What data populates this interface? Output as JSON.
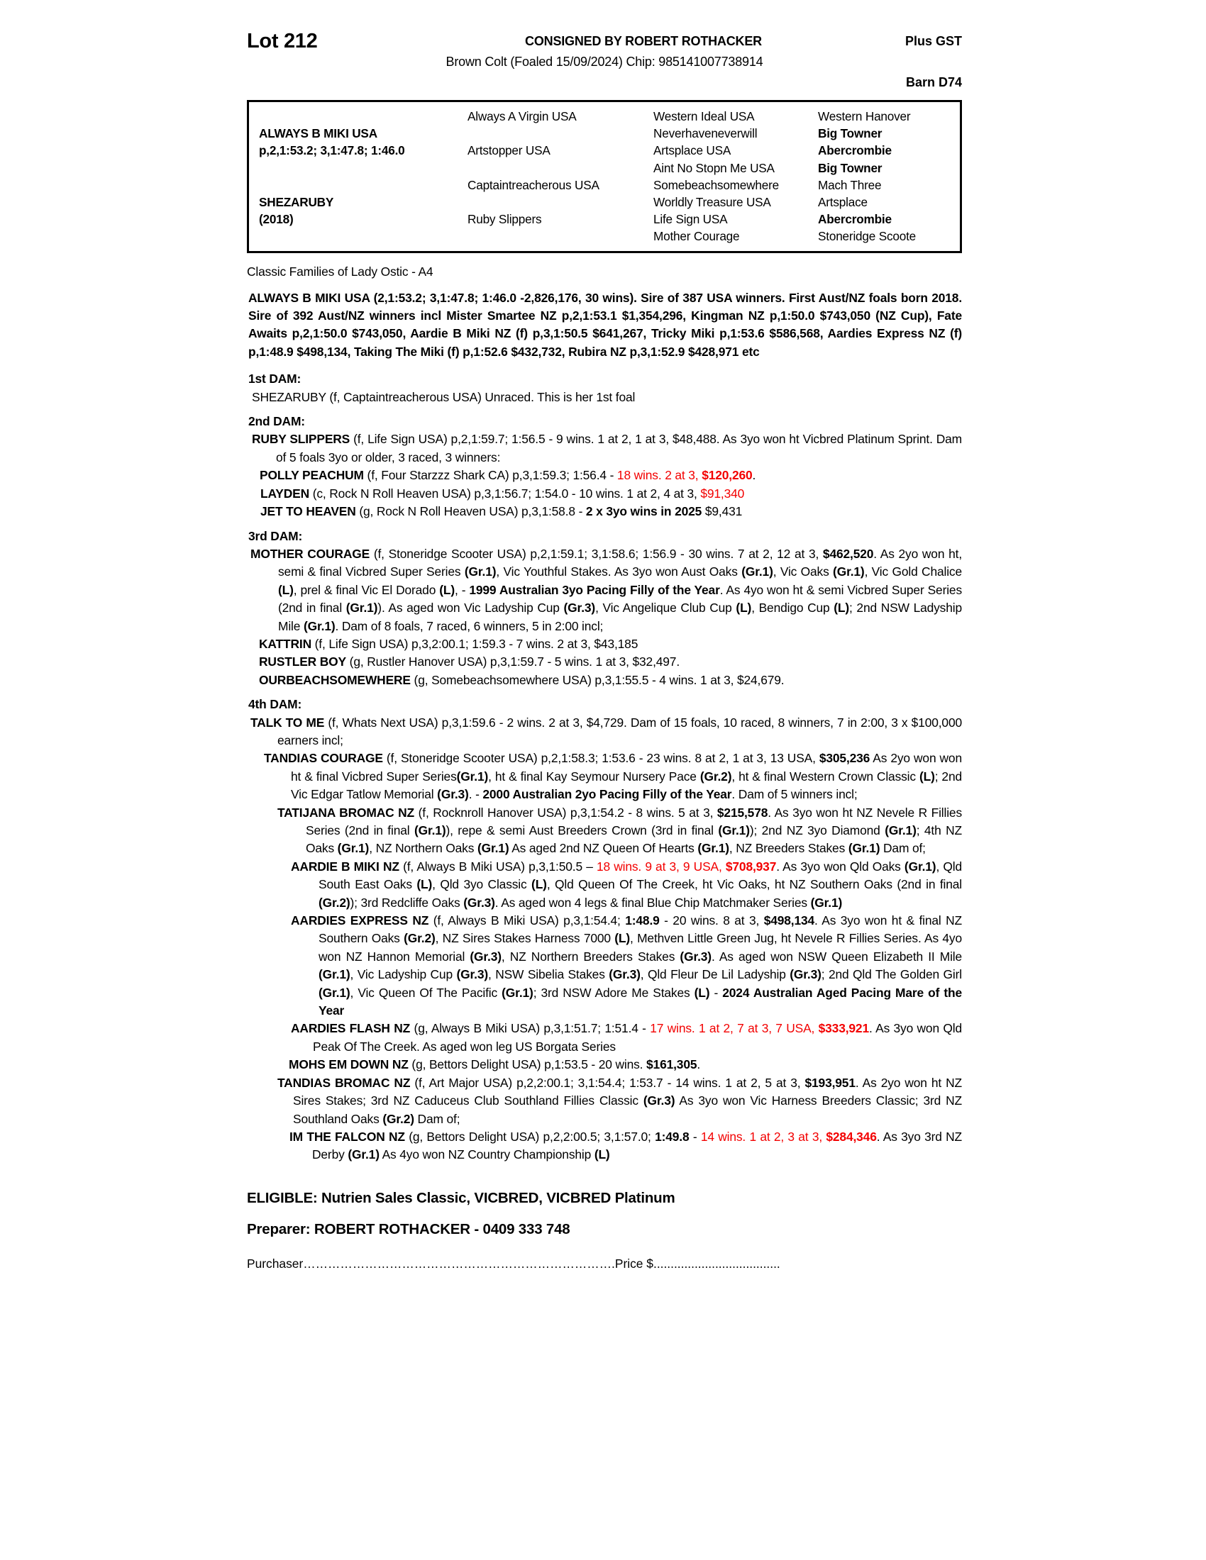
{
  "header": {
    "lot": "Lot 212",
    "consigned": "CONSIGNED BY ROBERT ROTHACKER",
    "plus_gst": "Plus GST",
    "subtitle": "Brown Colt (Foaled 15/09/2024) Chip: 985141007738914",
    "barn": "Barn D74"
  },
  "pedigree": {
    "rows": [
      [
        {
          "t": "",
          "b": false
        },
        {
          "t": "Always A Virgin USA",
          "b": false
        },
        {
          "t": "Western Ideal USA",
          "b": false
        },
        {
          "t": "Western Hanover",
          "b": false
        }
      ],
      [
        {
          "t": "ALWAYS B MIKI USA",
          "b": true
        },
        {
          "t": "",
          "b": false
        },
        {
          "t": "Neverhaveneverwill",
          "b": false
        },
        {
          "t": "Big Towner",
          "b": true
        }
      ],
      [
        {
          "t": "p,2,1:53.2; 3,1:47.8; 1:46.0",
          "b": true
        },
        {
          "t": "Artstopper USA",
          "b": false
        },
        {
          "t": "Artsplace USA",
          "b": false
        },
        {
          "t": "Abercrombie",
          "b": true
        }
      ],
      [
        {
          "t": "",
          "b": false
        },
        {
          "t": "",
          "b": false
        },
        {
          "t": "Aint No Stopn Me USA",
          "b": false
        },
        {
          "t": "Big Towner",
          "b": true
        }
      ],
      [
        {
          "t": "",
          "b": false
        },
        {
          "t": "Captaintreacherous USA",
          "b": false
        },
        {
          "t": "Somebeachsomewhere",
          "b": false
        },
        {
          "t": "Mach Three",
          "b": false
        }
      ],
      [
        {
          "t": "SHEZARUBY",
          "b": true
        },
        {
          "t": "",
          "b": false
        },
        {
          "t": "Worldly Treasure USA",
          "b": false
        },
        {
          "t": "Artsplace",
          "b": false
        }
      ],
      [
        {
          "t": "(2018)",
          "b": true
        },
        {
          "t": "Ruby Slippers",
          "b": false
        },
        {
          "t": "Life Sign USA",
          "b": false
        },
        {
          "t": "Abercrombie",
          "b": true
        }
      ],
      [
        {
          "t": "",
          "b": false
        },
        {
          "t": "",
          "b": false
        },
        {
          "t": "Mother Courage",
          "b": false
        },
        {
          "t": "Stoneridge Scoote",
          "b": false
        }
      ]
    ]
  },
  "classic_families": "Classic Families of Lady Ostic - A4",
  "sections": [
    {
      "k": "e",
      "name": "sire-paragraph",
      "ind": 0,
      "hang": 0,
      "mt": 0,
      "runs": [
        [
          "ALWAYS B MIKI USA (2,1:53.2; 3,1:47.8; 1:46.0 -2,826,176, 30 wins). Sire of 387 USA winners. First Aust/NZ foals born 2018. Sire of 392 Aust/NZ winners incl Mister Smartee NZ p,2,1:53.1 $1,354,296, Kingman NZ p,1:50.0 $743,050 (NZ Cup), Fate Awaits p,2,1:50.0 $743,050, Aardie B Miki NZ (f) p,3,1:50.5 $641,267, Tricky Miki p,1:53.6 $586,568, Aardies Express NZ (f) p,1:48.9 $498,134, Taking The Miki (f) p,1:52.6 $432,732, Rubira NZ p,3,1:52.9 $428,971 etc",
          "b"
        ]
      ]
    },
    {
      "k": "h",
      "mt": 13,
      "t": "1st DAM:"
    },
    {
      "k": "e",
      "name": "entry-shezaruby",
      "ind": 5,
      "hang": 30,
      "mt": 0,
      "runs": [
        [
          "SHEZARUBY (f, Captaintreacherous USA) Unraced. This is her 1st foal",
          "n"
        ]
      ]
    },
    {
      "k": "h",
      "mt": 9,
      "t": "2nd DAM:"
    },
    {
      "k": "e",
      "name": "entry-ruby-slippers",
      "ind": 5,
      "hang": 34,
      "mt": 0,
      "runs": [
        [
          "RUBY SLIPPERS",
          "b"
        ],
        [
          " (f, Life Sign USA) p,2,1:59.7; 1:56.5 - 9 wins. 1 at 2, 1 at 3, $48,488. As 3yo won ht Vicbred Platinum Sprint. Dam of 5 foals 3yo or older, 3 raced, 3 winners:",
          "n"
        ]
      ]
    },
    {
      "k": "e",
      "name": "entry-polly-peachum",
      "ind": 16,
      "hang": 30,
      "mt": 0,
      "runs": [
        [
          "POLLY PEACHUM",
          "b"
        ],
        [
          " (f, Four Starzzz Shark CA) p,3,1:59.3; 1:56.4 - ",
          "n"
        ],
        [
          "18 wins. 2 at 3, ",
          "r"
        ],
        [
          "$120,260",
          "rb"
        ],
        [
          ".",
          "n"
        ]
      ]
    },
    {
      "k": "e",
      "name": "entry-layden",
      "ind": 17,
      "hang": 30,
      "mt": 0,
      "runs": [
        [
          "LAYDEN",
          "b"
        ],
        [
          " (c, Rock N Roll Heaven USA) p,3,1:56.7; 1:54.0 - 10 wins. 1 at 2, 4 at 3, ",
          "n"
        ],
        [
          "$91,340",
          "r"
        ]
      ]
    },
    {
      "k": "e",
      "name": "entry-jet-to-heaven",
      "ind": 17,
      "hang": 30,
      "mt": 0,
      "runs": [
        [
          "JET TO HEAVEN",
          "b"
        ],
        [
          " (g, Rock N Roll Heaven USA) p,3,1:58.8 -  ",
          "n"
        ],
        [
          "2 x 3yo wins in 2025",
          "b"
        ],
        [
          " $9,431",
          "n"
        ]
      ]
    },
    {
      "k": "h",
      "mt": 9,
      "t": "3rd DAM:"
    },
    {
      "k": "e",
      "name": "entry-mother-courage",
      "ind": 3,
      "hang": 39,
      "mt": 0,
      "runs": [
        [
          "MOTHER COURAGE",
          "b"
        ],
        [
          " (f, Stoneridge Scooter USA) p,2,1:59.1; 3,1:58.6; 1:56.9 - 30 wins. 7 at 2, 12 at 3, ",
          "n"
        ],
        [
          "$462,520",
          "b"
        ],
        [
          ". As 2yo won ht, semi & final Vicbred Super Series ",
          "n"
        ],
        [
          "(Gr.1)",
          "b"
        ],
        [
          ", Vic Youthful Stakes. As 3yo won Aust Oaks ",
          "n"
        ],
        [
          "(Gr.1)",
          "b"
        ],
        [
          ", Vic Oaks ",
          "n"
        ],
        [
          "(Gr.1)",
          "b"
        ],
        [
          ", Vic Gold Chalice ",
          "n"
        ],
        [
          "(L)",
          "b"
        ],
        [
          ", prel & final Vic El Dorado ",
          "n"
        ],
        [
          "(L)",
          "b"
        ],
        [
          ", - ",
          "n"
        ],
        [
          "1999 Australian 3yo Pacing Filly of the Year",
          "b"
        ],
        [
          ". As 4yo won ht & semi Vicbred Super Series (2nd in final ",
          "n"
        ],
        [
          "(Gr.1)",
          "b"
        ],
        [
          "). As aged won Vic Ladyship Cup ",
          "n"
        ],
        [
          "(Gr.3)",
          "b"
        ],
        [
          ", Vic Angelique Club Cup ",
          "n"
        ],
        [
          "(L)",
          "b"
        ],
        [
          ", Bendigo Cup ",
          "n"
        ],
        [
          "(L)",
          "b"
        ],
        [
          "; 2nd NSW Ladyship Mile ",
          "n"
        ],
        [
          "(Gr.1)",
          "b"
        ],
        [
          ". Dam of 8 foals, 7 raced, 6 winners, 5 in 2:00 incl;",
          "n"
        ]
      ]
    },
    {
      "k": "e",
      "name": "entry-kattrin",
      "ind": 15,
      "hang": 30,
      "mt": 0,
      "runs": [
        [
          "KATTRIN",
          "b"
        ],
        [
          " (f, Life Sign USA) p,3,2:00.1; 1:59.3 - 7 wins. 2 at 3, $43,185",
          "n"
        ]
      ]
    },
    {
      "k": "e",
      "name": "entry-rustler-boy",
      "ind": 15,
      "hang": 30,
      "mt": 0,
      "runs": [
        [
          "RUSTLER BOY",
          "b"
        ],
        [
          " (g, Rustler Hanover USA) p,3,1:59.7 - 5 wins. 1 at 3, $32,497.",
          "n"
        ]
      ]
    },
    {
      "k": "e",
      "name": "entry-ourbeachsomewhere",
      "ind": 15,
      "hang": 30,
      "mt": 0,
      "runs": [
        [
          "OURBEACHSOMEWHERE",
          "b"
        ],
        [
          " (g, Somebeachsomewhere USA) p,3,1:55.5 - 4 wins. 1 at 3, $24,679.",
          "n"
        ]
      ]
    },
    {
      "k": "h",
      "mt": 9,
      "t": "4th DAM:"
    },
    {
      "k": "e",
      "name": "entry-talk-to-me",
      "ind": 3,
      "hang": 38,
      "mt": 0,
      "runs": [
        [
          "TALK TO ME",
          "b"
        ],
        [
          " (f, Whats Next USA) p,3,1:59.6 - 2 wins. 2 at 3, $4,729. Dam of 15 foals, 10 raced, 8 winners, 7 in 2:00, 3 x $100,000 earners incl;",
          "n"
        ]
      ]
    },
    {
      "k": "e",
      "name": "entry-tandias-courage",
      "ind": 22,
      "hang": 38,
      "mt": 0,
      "runs": [
        [
          "TANDIAS COURAGE",
          "b"
        ],
        [
          " (f, Stoneridge Scooter USA) p,2,1:58.3; 1:53.6 - 23 wins. 8 at 2, 1 at 3, 13 USA, ",
          "n"
        ],
        [
          "$305,236",
          "b"
        ],
        [
          " As 2yo won won ht & final Vicbred Super Series",
          "n"
        ],
        [
          "(Gr.1)",
          "b"
        ],
        [
          ", ht & final Kay Seymour Nursery Pace ",
          "n"
        ],
        [
          "(Gr.2)",
          "b"
        ],
        [
          ", ht & final Western Crown Classic ",
          "n"
        ],
        [
          "(L)",
          "b"
        ],
        [
          "; 2nd Vic Edgar Tatlow Memorial ",
          "n"
        ],
        [
          "(Gr.3)",
          "b"
        ],
        [
          ". - ",
          "n"
        ],
        [
          "2000 Australian 2yo Pacing Filly of the Year",
          "b"
        ],
        [
          ". Dam of 5 winners incl;",
          "n"
        ]
      ]
    },
    {
      "k": "e",
      "name": "entry-tatijana-bromac",
      "ind": 41,
      "hang": 40,
      "mt": 0,
      "runs": [
        [
          "TATIJANA BROMAC NZ",
          "b"
        ],
        [
          " (f, Rocknroll Hanover USA) p,3,1:54.2 - 8 wins. 5 at 3, ",
          "n"
        ],
        [
          "$215,578",
          "b"
        ],
        [
          ". As 3yo won ht NZ Nevele R Fillies Series (2nd in final ",
          "n"
        ],
        [
          "(Gr.1)",
          "b"
        ],
        [
          "), repe & semi Aust Breeders Crown (3rd in final ",
          "n"
        ],
        [
          "(Gr.1)",
          "b"
        ],
        [
          "); 2nd NZ 3yo Diamond ",
          "n"
        ],
        [
          "(Gr.1)",
          "b"
        ],
        [
          "; 4th NZ Oaks ",
          "n"
        ],
        [
          "(Gr.1)",
          "b"
        ],
        [
          ", NZ Northern Oaks ",
          "n"
        ],
        [
          "(Gr.1)",
          "b"
        ],
        [
          " As aged 2nd NZ Queen Of Hearts ",
          "n"
        ],
        [
          "(Gr.1)",
          "b"
        ],
        [
          ", NZ Breeders Stakes ",
          "n"
        ],
        [
          "(Gr.1)",
          "b"
        ],
        [
          " Dam of;",
          "n"
        ]
      ]
    },
    {
      "k": "e",
      "name": "entry-aardie-b-miki",
      "ind": 60,
      "hang": 39,
      "mt": 0,
      "runs": [
        [
          "AARDIE B MIKI NZ",
          "b"
        ],
        [
          " (f, Always B Miki USA) p,3,1:50.5 – ",
          "n"
        ],
        [
          "18 wins. 9 at 3, 9 USA, ",
          "r"
        ],
        [
          "$708,937",
          "rb"
        ],
        [
          ". As 3yo won Qld Oaks ",
          "n"
        ],
        [
          "(Gr.1)",
          "b"
        ],
        [
          ", Qld South East Oaks ",
          "n"
        ],
        [
          "(L)",
          "b"
        ],
        [
          ", Qld 3yo Classic ",
          "n"
        ],
        [
          "(L)",
          "b"
        ],
        [
          ", Qld Queen Of The Creek, ht Vic Oaks, ht NZ Southern Oaks (2nd in final ",
          "n"
        ],
        [
          "(Gr.2)",
          "b"
        ],
        [
          "); 3rd Redcliffe Oaks ",
          "n"
        ],
        [
          "(Gr.3)",
          "b"
        ],
        [
          ". As aged won 4 legs & final Blue Chip Matchmaker Series ",
          "n"
        ],
        [
          "(Gr.1)",
          "b"
        ]
      ]
    },
    {
      "k": "e",
      "name": "entry-aardies-express",
      "ind": 60,
      "hang": 39,
      "mt": 0,
      "runs": [
        [
          "AARDIES EXPRESS NZ",
          "b"
        ],
        [
          " (f, Always B Miki USA) p,3,1:54.4; ",
          "n"
        ],
        [
          "1:48.9",
          "b"
        ],
        [
          " - 20 wins. 8 at 3, ",
          "n"
        ],
        [
          "$498,134",
          "b"
        ],
        [
          ". As 3yo won ht & final NZ Southern Oaks ",
          "n"
        ],
        [
          "(Gr.2)",
          "b"
        ],
        [
          ", NZ Sires Stakes Harness 7000 ",
          "n"
        ],
        [
          "(L)",
          "b"
        ],
        [
          ", Methven Little Green Jug, ht Nevele R Fillies Series. As 4yo won NZ Hannon Memorial ",
          "n"
        ],
        [
          "(Gr.3)",
          "b"
        ],
        [
          ", NZ Northern Breeders Stakes ",
          "n"
        ],
        [
          "(Gr.3)",
          "b"
        ],
        [
          ". As aged won NSW Queen Elizabeth II Mile ",
          "n"
        ],
        [
          "(Gr.1)",
          "b"
        ],
        [
          ", Vic Ladyship Cup ",
          "n"
        ],
        [
          "(Gr.3)",
          "b"
        ],
        [
          ", NSW Sibelia Stakes ",
          "n"
        ],
        [
          "(Gr.3)",
          "b"
        ],
        [
          ", Qld Fleur De Lil Ladyship ",
          "n"
        ],
        [
          "(Gr.3)",
          "b"
        ],
        [
          "; 2nd Qld The Golden Girl ",
          "n"
        ],
        [
          "(Gr.1)",
          "b"
        ],
        [
          ", Vic Queen Of The Pacific ",
          "n"
        ],
        [
          "(Gr.1)",
          "b"
        ],
        [
          "; 3rd NSW Adore Me Stakes ",
          "n"
        ],
        [
          "(L)",
          "b"
        ],
        [
          " - ",
          "n"
        ],
        [
          "2024 Australian Aged Pacing Mare of the Year",
          "b"
        ]
      ]
    },
    {
      "k": "e",
      "name": "entry-aardies-flash",
      "ind": 60,
      "hang": 31,
      "mt": 0,
      "runs": [
        [
          "AARDIES FLASH NZ",
          "b"
        ],
        [
          " (g, Always B Miki USA) p,3,1:51.7; 1:51.4 - ",
          "n"
        ],
        [
          "17 wins. 1 at 2, 7 at 3, 7 USA, ",
          "r"
        ],
        [
          "$333,921",
          "rb"
        ],
        [
          ". As 3yo won Qld Peak Of The Creek. As aged won leg US Borgata Series",
          "n"
        ]
      ]
    },
    {
      "k": "e",
      "name": "entry-mohs-em-down",
      "ind": 57,
      "hang": 30,
      "mt": 0,
      "runs": [
        [
          "MOHS EM DOWN NZ",
          "b"
        ],
        [
          " (g, Bettors Delight USA) p,1:53.5 - 20 wins. ",
          "n"
        ],
        [
          "$161,305",
          "b"
        ],
        [
          ".",
          "n"
        ]
      ]
    },
    {
      "k": "e",
      "name": "entry-tandias-bromac",
      "ind": 41,
      "hang": 22,
      "mt": 0,
      "runs": [
        [
          "TANDIAS BROMAC NZ",
          "b"
        ],
        [
          " (f, Art Major USA) p,2,2:00.1; 3,1:54.4; 1:53.7 - 14 wins. 1 at 2, 5 at 3, ",
          "n"
        ],
        [
          "$193,951",
          "b"
        ],
        [
          ". As 2yo won ht NZ Sires Stakes; 3rd NZ Caduceus Club Southland Fillies Classic ",
          "n"
        ],
        [
          "(Gr.3)",
          "b"
        ],
        [
          " As 3yo won Vic Harness Breeders Classic; 3rd NZ Southland Oaks ",
          "n"
        ],
        [
          "(Gr.2)",
          "b"
        ],
        [
          " Dam of;",
          "n"
        ]
      ]
    },
    {
      "k": "e",
      "name": "entry-im-the-falcon",
      "ind": 58,
      "hang": 32,
      "mt": 0,
      "runs": [
        [
          "IM THE FALCON NZ",
          "b"
        ],
        [
          " (g, Bettors Delight USA) p,2,2:00.5; 3,1:57.0; ",
          "n"
        ],
        [
          "1:49.8",
          "b"
        ],
        [
          " - ",
          "n"
        ],
        [
          "14 wins. 1 at 2, 3 at 3, ",
          "r"
        ],
        [
          "$284,346",
          "rb"
        ],
        [
          ". As 3yo 3rd NZ Derby ",
          "n"
        ],
        [
          "(Gr.1)",
          "b"
        ],
        [
          " As 4yo won NZ Country Championship ",
          "n"
        ],
        [
          "(L)",
          "b"
        ]
      ]
    }
  ],
  "footer": {
    "eligible": "ELIGIBLE: Nutrien Sales Classic, VICBRED, VICBRED Platinum",
    "preparer": "Preparer: ROBERT ROTHACKER - 0409 333 748",
    "purchaser_line": "Purchaser………………………………………………………………….Price $....................................."
  }
}
